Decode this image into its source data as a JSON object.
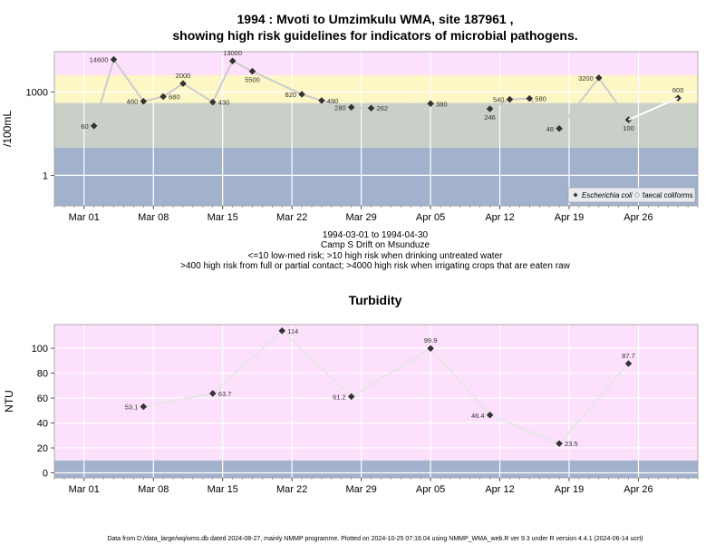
{
  "chart_data": [
    {
      "type": "line",
      "title": "1994 : Mvoti to Umzimkulu WMA, site 187961 ,",
      "subtitle": "showing high risk guidelines for indicators of microbial pathogens.",
      "ylabel": "/100mL",
      "yscale": "log10",
      "ylim": [
        0.08,
        28000
      ],
      "yticks": [
        {
          "v": 1,
          "label": "1"
        },
        {
          "v": 1000,
          "label": "1000"
        }
      ],
      "x_start": "1994-02-26",
      "x_end": "1994-05-02",
      "xticks": [
        {
          "date": "1994-03-01",
          "label": "Mar 01"
        },
        {
          "date": "1994-03-08",
          "label": "Mar 08"
        },
        {
          "date": "1994-03-15",
          "label": "Mar 15"
        },
        {
          "date": "1994-03-22",
          "label": "Mar 22"
        },
        {
          "date": "1994-03-29",
          "label": "Mar 29"
        },
        {
          "date": "1994-04-05",
          "label": "Apr 05"
        },
        {
          "date": "1994-04-12",
          "label": "Apr 12"
        },
        {
          "date": "1994-04-19",
          "label": "Apr 19"
        },
        {
          "date": "1994-04-26",
          "label": "Apr 26"
        }
      ],
      "bands": [
        {
          "from": 0.08,
          "to": 10,
          "color": "#a2b2cc"
        },
        {
          "from": 10,
          "to": 400,
          "color": "#c8d0c8"
        },
        {
          "from": 400,
          "to": 4000,
          "color": "#fdf6c5"
        },
        {
          "from": 4000,
          "to": 28000,
          "color": "#fde0fc"
        }
      ],
      "series": [
        {
          "name": "Escherichia coli",
          "color": "#cccccc",
          "points": [
            {
              "date": "1994-03-02",
              "y": 60,
              "label": "60",
              "pos": "left"
            },
            {
              "date": "1994-03-04",
              "y": 14600,
              "label": "14600",
              "pos": "left"
            },
            {
              "date": "1994-03-07",
              "y": 460,
              "label": "460",
              "pos": "left"
            },
            {
              "date": "1994-03-09",
              "y": 680,
              "label": "680",
              "pos": "right"
            },
            {
              "date": "1994-03-11",
              "y": 2000,
              "label": "2000",
              "pos": "above"
            },
            {
              "date": "1994-03-14",
              "y": 430,
              "label": "430",
              "pos": "right"
            },
            {
              "date": "1994-03-16",
              "y": 13000,
              "label": "13000",
              "pos": "above"
            },
            {
              "date": "1994-03-18",
              "y": 5500,
              "label": "5500",
              "pos": "below"
            },
            {
              "date": "1994-03-23",
              "y": 820,
              "label": "820",
              "pos": "left"
            },
            {
              "date": "1994-03-25",
              "y": 490,
              "label": "490",
              "pos": "right"
            },
            {
              "date": "1994-03-28",
              "y": 280,
              "label": "280",
              "pos": "left"
            },
            {
              "date": "1994-03-30",
              "y": 262,
              "label": "262",
              "pos": "right"
            },
            {
              "date": "1994-04-05",
              "y": 380,
              "label": "380",
              "pos": "right"
            },
            {
              "date": "1994-04-11",
              "y": 246,
              "label": "246",
              "pos": "below"
            },
            {
              "date": "1994-04-13",
              "y": 540,
              "label": "540",
              "pos": "left"
            },
            {
              "date": "1994-04-15",
              "y": 580,
              "label": "580",
              "pos": "right"
            },
            {
              "date": "1994-04-18",
              "y": 48,
              "label": "48",
              "pos": "left"
            },
            {
              "date": "1994-04-22",
              "y": 3200,
              "label": "3200",
              "pos": "left"
            },
            {
              "date": "1994-04-25",
              "y": 100,
              "label": "100",
              "pos": "below"
            },
            {
              "date": "1994-04-30",
              "y": 600,
              "label": "600",
              "pos": "above"
            }
          ]
        },
        {
          "name": "faecal coliforms",
          "color": "#ffffff",
          "points": [
            {
              "date": "1994-04-25",
              "y": 100
            },
            {
              "date": "1994-04-30",
              "y": 600
            }
          ]
        }
      ],
      "legend": {
        "placement": "bottom-right",
        "items": [
          "Escherichia coli",
          "faecal coliforms"
        ]
      },
      "notes": [
        "1994-03-01 to 1994-04-30",
        "Camp S Drift on Msunduze",
        "<=10 low-med risk; >10 high risk when drinking untreated water",
        ">400 high risk from full or partial contact; >4000 high risk when irrigating crops that are eaten raw"
      ]
    },
    {
      "type": "line",
      "title": "Turbidity",
      "ylabel": "NTU",
      "ylim": [
        -4,
        119
      ],
      "yticks": [
        0,
        20,
        40,
        60,
        80,
        100
      ],
      "x_start": "1994-02-26",
      "x_end": "1994-05-02",
      "xticks": [
        {
          "date": "1994-03-01",
          "label": "Mar 01"
        },
        {
          "date": "1994-03-08",
          "label": "Mar 08"
        },
        {
          "date": "1994-03-15",
          "label": "Mar 15"
        },
        {
          "date": "1994-03-22",
          "label": "Mar 22"
        },
        {
          "date": "1994-03-29",
          "label": "Mar 29"
        },
        {
          "date": "1994-04-05",
          "label": "Apr 05"
        },
        {
          "date": "1994-04-12",
          "label": "Apr 12"
        },
        {
          "date": "1994-04-19",
          "label": "Apr 19"
        },
        {
          "date": "1994-04-26",
          "label": "Apr 26"
        }
      ],
      "bands": [
        {
          "from": -4,
          "to": 10,
          "color": "#a2b2cc"
        },
        {
          "from": 10,
          "to": 119,
          "color": "#fde0fc"
        }
      ],
      "series": [
        {
          "color": "#e6e6e6",
          "points": [
            {
              "date": "1994-03-07",
              "y": 53.1,
              "label": "53.1",
              "pos": "left"
            },
            {
              "date": "1994-03-14",
              "y": 63.7,
              "label": "63.7",
              "pos": "right"
            },
            {
              "date": "1994-03-21",
              "y": 114,
              "label": "114",
              "pos": "right"
            },
            {
              "date": "1994-03-28",
              "y": 61.2,
              "label": "61.2",
              "pos": "left"
            },
            {
              "date": "1994-04-05",
              "y": 99.9,
              "label": "99.9",
              "pos": "above"
            },
            {
              "date": "1994-04-11",
              "y": 46.4,
              "label": "46.4",
              "pos": "left"
            },
            {
              "date": "1994-04-18",
              "y": 23.5,
              "label": "23.5",
              "pos": "right"
            },
            {
              "date": "1994-04-25",
              "y": 87.7,
              "label": "87.7",
              "pos": "above"
            }
          ]
        }
      ]
    }
  ],
  "footer": "Data from D:/data_large/wq/wms.db dated 2024-08-27, mainly NMMP programme. Plotted on 2024-10-25 07:16:04 using NMMP_WMA_web.R ver 9.3 under R version 4.4.1 (2024-06-14 ucrt)"
}
